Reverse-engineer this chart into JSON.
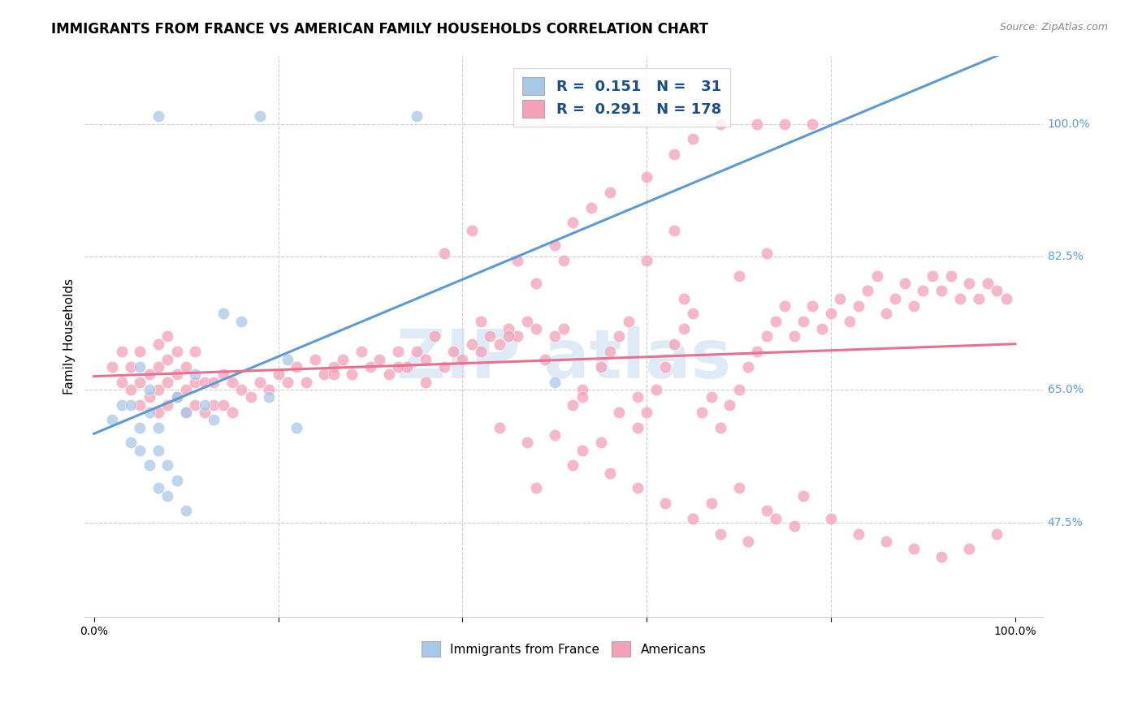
{
  "title": "IMMIGRANTS FROM FRANCE VS AMERICAN FAMILY HOUSEHOLDS CORRELATION CHART",
  "source": "Source: ZipAtlas.com",
  "ylabel": "Family Households",
  "blue_color": "#a8c8e8",
  "pink_color": "#f4a0b8",
  "blue_line_color": "#5b9bd5",
  "pink_line_color": "#e87090",
  "right_label_color": "#5b9bd5",
  "legend_text_color": "#1a4f8a",
  "watermark_color": "#c8ddf0",
  "title_fontsize": 12,
  "axis_label_fontsize": 11,
  "tick_fontsize": 10,
  "legend_fontsize": 13,
  "blue_x": [
    0.02,
    0.03,
    0.04,
    0.04,
    0.05,
    0.05,
    0.05,
    0.06,
    0.06,
    0.06,
    0.07,
    0.07,
    0.07,
    0.08,
    0.08,
    0.09,
    0.09,
    0.1,
    0.1,
    0.11,
    0.12,
    0.13,
    0.14,
    0.16,
    0.19,
    0.21,
    0.22,
    0.5,
    0.07,
    0.18,
    0.35
  ],
  "blue_y": [
    0.61,
    0.63,
    0.58,
    0.63,
    0.6,
    0.57,
    0.68,
    0.55,
    0.62,
    0.65,
    0.52,
    0.57,
    0.6,
    0.51,
    0.55,
    0.53,
    0.64,
    0.49,
    0.62,
    0.67,
    0.63,
    0.61,
    0.75,
    0.74,
    0.64,
    0.69,
    0.6,
    0.66,
    1.01,
    1.01,
    1.01
  ],
  "pink_x": [
    0.02,
    0.03,
    0.03,
    0.04,
    0.04,
    0.05,
    0.05,
    0.05,
    0.06,
    0.06,
    0.07,
    0.07,
    0.07,
    0.07,
    0.08,
    0.08,
    0.08,
    0.08,
    0.09,
    0.09,
    0.09,
    0.1,
    0.1,
    0.1,
    0.11,
    0.11,
    0.11,
    0.12,
    0.12,
    0.13,
    0.13,
    0.14,
    0.14,
    0.15,
    0.15,
    0.16,
    0.17,
    0.18,
    0.19,
    0.2,
    0.21,
    0.22,
    0.23,
    0.24,
    0.25,
    0.26,
    0.27,
    0.28,
    0.29,
    0.3,
    0.31,
    0.32,
    0.33,
    0.34,
    0.35,
    0.36,
    0.38,
    0.39,
    0.4,
    0.41,
    0.42,
    0.43,
    0.44,
    0.45,
    0.46,
    0.47,
    0.48,
    0.5,
    0.51,
    0.52,
    0.53,
    0.55,
    0.56,
    0.57,
    0.58,
    0.59,
    0.6,
    0.61,
    0.62,
    0.63,
    0.64,
    0.65,
    0.66,
    0.67,
    0.68,
    0.69,
    0.7,
    0.71,
    0.72,
    0.73,
    0.74,
    0.75,
    0.76,
    0.77,
    0.78,
    0.79,
    0.8,
    0.81,
    0.82,
    0.83,
    0.84,
    0.85,
    0.86,
    0.87,
    0.88,
    0.89,
    0.9,
    0.91,
    0.92,
    0.93,
    0.94,
    0.95,
    0.96,
    0.97,
    0.98,
    0.99,
    0.46,
    0.5,
    0.52,
    0.54,
    0.56,
    0.6,
    0.63,
    0.65,
    0.68,
    0.72,
    0.75,
    0.78,
    0.38,
    0.41,
    0.6,
    0.63,
    0.48,
    0.51,
    0.7,
    0.73,
    0.55,
    0.52,
    0.48,
    0.67,
    0.7,
    0.73,
    0.76,
    0.5,
    0.53,
    0.56,
    0.59,
    0.62,
    0.65,
    0.68,
    0.71,
    0.74,
    0.77,
    0.8,
    0.83,
    0.86,
    0.89,
    0.92,
    0.95,
    0.98,
    0.44,
    0.47,
    0.57,
    0.42,
    0.45,
    0.59,
    0.64,
    0.49,
    0.53,
    0.37,
    0.33,
    0.36,
    0.26
  ],
  "pink_y": [
    0.68,
    0.66,
    0.7,
    0.65,
    0.68,
    0.63,
    0.66,
    0.7,
    0.64,
    0.67,
    0.62,
    0.65,
    0.68,
    0.71,
    0.63,
    0.66,
    0.69,
    0.72,
    0.64,
    0.67,
    0.7,
    0.62,
    0.65,
    0.68,
    0.63,
    0.66,
    0.7,
    0.62,
    0.66,
    0.63,
    0.66,
    0.63,
    0.67,
    0.62,
    0.66,
    0.65,
    0.64,
    0.66,
    0.65,
    0.67,
    0.66,
    0.68,
    0.66,
    0.69,
    0.67,
    0.68,
    0.69,
    0.67,
    0.7,
    0.68,
    0.69,
    0.67,
    0.7,
    0.68,
    0.7,
    0.69,
    0.68,
    0.7,
    0.69,
    0.71,
    0.7,
    0.72,
    0.71,
    0.73,
    0.72,
    0.74,
    0.73,
    0.72,
    0.73,
    0.63,
    0.65,
    0.68,
    0.7,
    0.72,
    0.74,
    0.6,
    0.62,
    0.65,
    0.68,
    0.71,
    0.73,
    0.75,
    0.62,
    0.64,
    0.6,
    0.63,
    0.65,
    0.68,
    0.7,
    0.72,
    0.74,
    0.76,
    0.72,
    0.74,
    0.76,
    0.73,
    0.75,
    0.77,
    0.74,
    0.76,
    0.78,
    0.8,
    0.75,
    0.77,
    0.79,
    0.76,
    0.78,
    0.8,
    0.78,
    0.8,
    0.77,
    0.79,
    0.77,
    0.79,
    0.78,
    0.77,
    0.82,
    0.84,
    0.87,
    0.89,
    0.91,
    0.93,
    0.96,
    0.98,
    1.0,
    1.0,
    1.0,
    1.0,
    0.83,
    0.86,
    0.82,
    0.86,
    0.79,
    0.82,
    0.8,
    0.83,
    0.58,
    0.55,
    0.52,
    0.5,
    0.52,
    0.49,
    0.47,
    0.59,
    0.57,
    0.54,
    0.52,
    0.5,
    0.48,
    0.46,
    0.45,
    0.48,
    0.51,
    0.48,
    0.46,
    0.45,
    0.44,
    0.43,
    0.44,
    0.46,
    0.6,
    0.58,
    0.62,
    0.74,
    0.72,
    0.64,
    0.77,
    0.69,
    0.64,
    0.72,
    0.68,
    0.66,
    0.67
  ]
}
